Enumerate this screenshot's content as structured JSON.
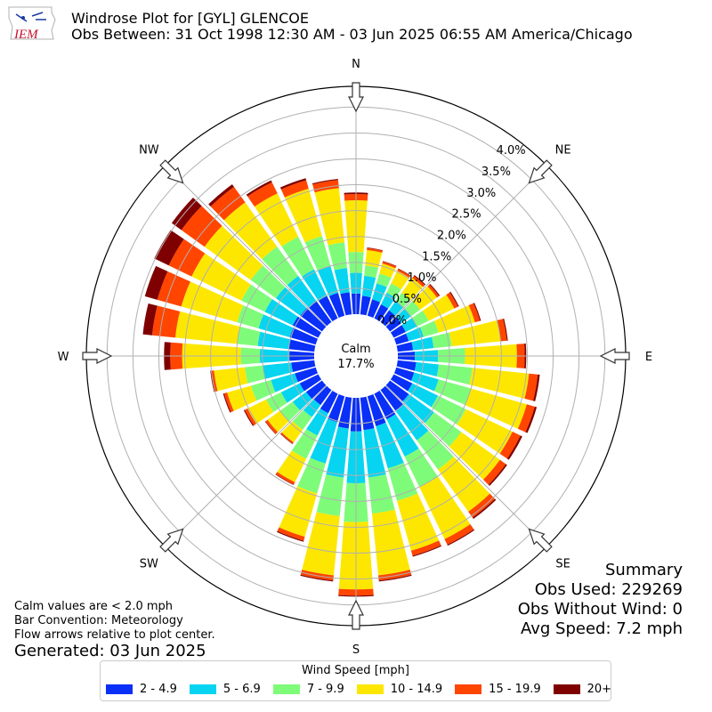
{
  "header": {
    "title": "Windrose Plot for [GYL] GLENCOE",
    "subtitle": "Obs Between: 31 Oct 1998 12:30 AM - 03 Jun 2025 06:55 AM America/Chicago",
    "logo_text": "IEM"
  },
  "center": {
    "label": "Calm",
    "value": "17.7%"
  },
  "notes": {
    "line1": "Calm values are < 2.0 mph",
    "line2": "Bar Convention: Meteorology",
    "line3": "Flow arrows relative to plot center.",
    "generated": "Generated: 03 Jun 2025"
  },
  "summary": {
    "title": "Summary",
    "obs_used": "Obs Used: 229269",
    "obs_without_wind": "Obs Without Wind: 0",
    "avg_speed": "Avg Speed: 7.2 mph"
  },
  "compass": [
    "N",
    "NE",
    "E",
    "SE",
    "S",
    "SW",
    "W",
    "NW"
  ],
  "chart_data": {
    "type": "windrose",
    "radial_ticks": [
      "0.0%",
      "0.5%",
      "1.0%",
      "1.5%",
      "2.0%",
      "2.5%",
      "3.0%",
      "3.5%",
      "4.0%"
    ],
    "rmax": 4.4,
    "legend_title": "Wind Speed [mph]",
    "bins": [
      {
        "label": "2 - 4.9",
        "color": "#0a2ff7"
      },
      {
        "label": "5 - 6.9",
        "color": "#06d4f0"
      },
      {
        "label": "7 - 9.9",
        "color": "#7ffb7a"
      },
      {
        "label": "10 - 14.9",
        "color": "#fde700"
      },
      {
        "label": "15 - 19.9",
        "color": "#ff4500"
      },
      {
        "label": "20+",
        "color": "#7f0000"
      }
    ],
    "directions_deg": [
      0,
      10,
      20,
      30,
      40,
      50,
      60,
      70,
      80,
      90,
      100,
      110,
      120,
      130,
      140,
      150,
      160,
      170,
      180,
      190,
      200,
      210,
      220,
      230,
      240,
      250,
      260,
      270,
      280,
      290,
      300,
      310,
      320,
      330,
      340,
      350
    ],
    "cumulative": [
      [
        0.4,
        0.8,
        1.2,
        2.2,
        2.32,
        2.35
      ],
      [
        0.36,
        0.75,
        0.95,
        1.25,
        1.29,
        1.3
      ],
      [
        0.33,
        0.65,
        0.85,
        1.05,
        1.09,
        1.1
      ],
      [
        0.3,
        0.55,
        0.75,
        1.02,
        1.06,
        1.07
      ],
      [
        0.28,
        0.5,
        0.7,
        1.05,
        1.1,
        1.12
      ],
      [
        0.27,
        0.5,
        0.72,
        1.12,
        1.17,
        1.19
      ],
      [
        0.26,
        0.5,
        0.75,
        1.3,
        1.38,
        1.4
      ],
      [
        0.25,
        0.55,
        0.85,
        1.58,
        1.68,
        1.7
      ],
      [
        0.3,
        0.7,
        1.05,
        2.0,
        2.12,
        2.14
      ],
      [
        0.33,
        0.78,
        1.3,
        2.3,
        2.45,
        2.48
      ],
      [
        0.36,
        0.8,
        1.45,
        2.55,
        2.72,
        2.76
      ],
      [
        0.36,
        0.85,
        1.5,
        2.62,
        2.78,
        2.82
      ],
      [
        0.4,
        0.95,
        1.55,
        2.55,
        2.72,
        2.76
      ],
      [
        0.45,
        1.05,
        1.7,
        2.62,
        2.76,
        2.79
      ],
      [
        0.5,
        1.2,
        1.9,
        2.9,
        3.04,
        3.07
      ],
      [
        0.55,
        1.35,
        2.0,
        3.12,
        3.24,
        3.26
      ],
      [
        0.6,
        1.45,
        2.1,
        3.1,
        3.2,
        3.22
      ],
      [
        0.63,
        1.55,
        2.25,
        3.45,
        3.55,
        3.57
      ],
      [
        0.65,
        1.65,
        2.4,
        3.7,
        3.82,
        3.84
      ],
      [
        0.6,
        1.55,
        2.3,
        3.45,
        3.55,
        3.57
      ],
      [
        0.52,
        1.35,
        1.95,
        2.82,
        2.9,
        2.92
      ],
      [
        0.42,
        0.9,
        1.4,
        1.9,
        1.95,
        1.96
      ],
      [
        0.36,
        0.65,
        0.95,
        1.25,
        1.28,
        1.29
      ],
      [
        0.38,
        0.7,
        1.0,
        1.3,
        1.35,
        1.36
      ],
      [
        0.4,
        0.8,
        1.12,
        1.52,
        1.58,
        1.6
      ],
      [
        0.42,
        0.9,
        1.3,
        1.78,
        1.84,
        1.86
      ],
      [
        0.45,
        1.0,
        1.35,
        1.95,
        2.0,
        2.02
      ],
      [
        0.48,
        1.05,
        1.42,
        2.55,
        2.78,
        2.9
      ],
      [
        0.5,
        1.1,
        1.5,
        2.7,
        3.15,
        3.33
      ],
      [
        0.52,
        1.15,
        1.58,
        2.7,
        3.18,
        3.43
      ],
      [
        0.55,
        1.15,
        1.65,
        2.72,
        3.21,
        3.52
      ],
      [
        0.52,
        1.1,
        1.7,
        2.8,
        3.35,
        3.58
      ],
      [
        0.5,
        1.1,
        1.8,
        2.85,
        3.22,
        3.28
      ],
      [
        0.48,
        1.05,
        1.75,
        2.68,
        2.92,
        2.96
      ],
      [
        0.46,
        1.0,
        1.6,
        2.55,
        2.72,
        2.76
      ],
      [
        0.43,
        0.9,
        1.4,
        2.45,
        2.61,
        2.63
      ]
    ]
  }
}
